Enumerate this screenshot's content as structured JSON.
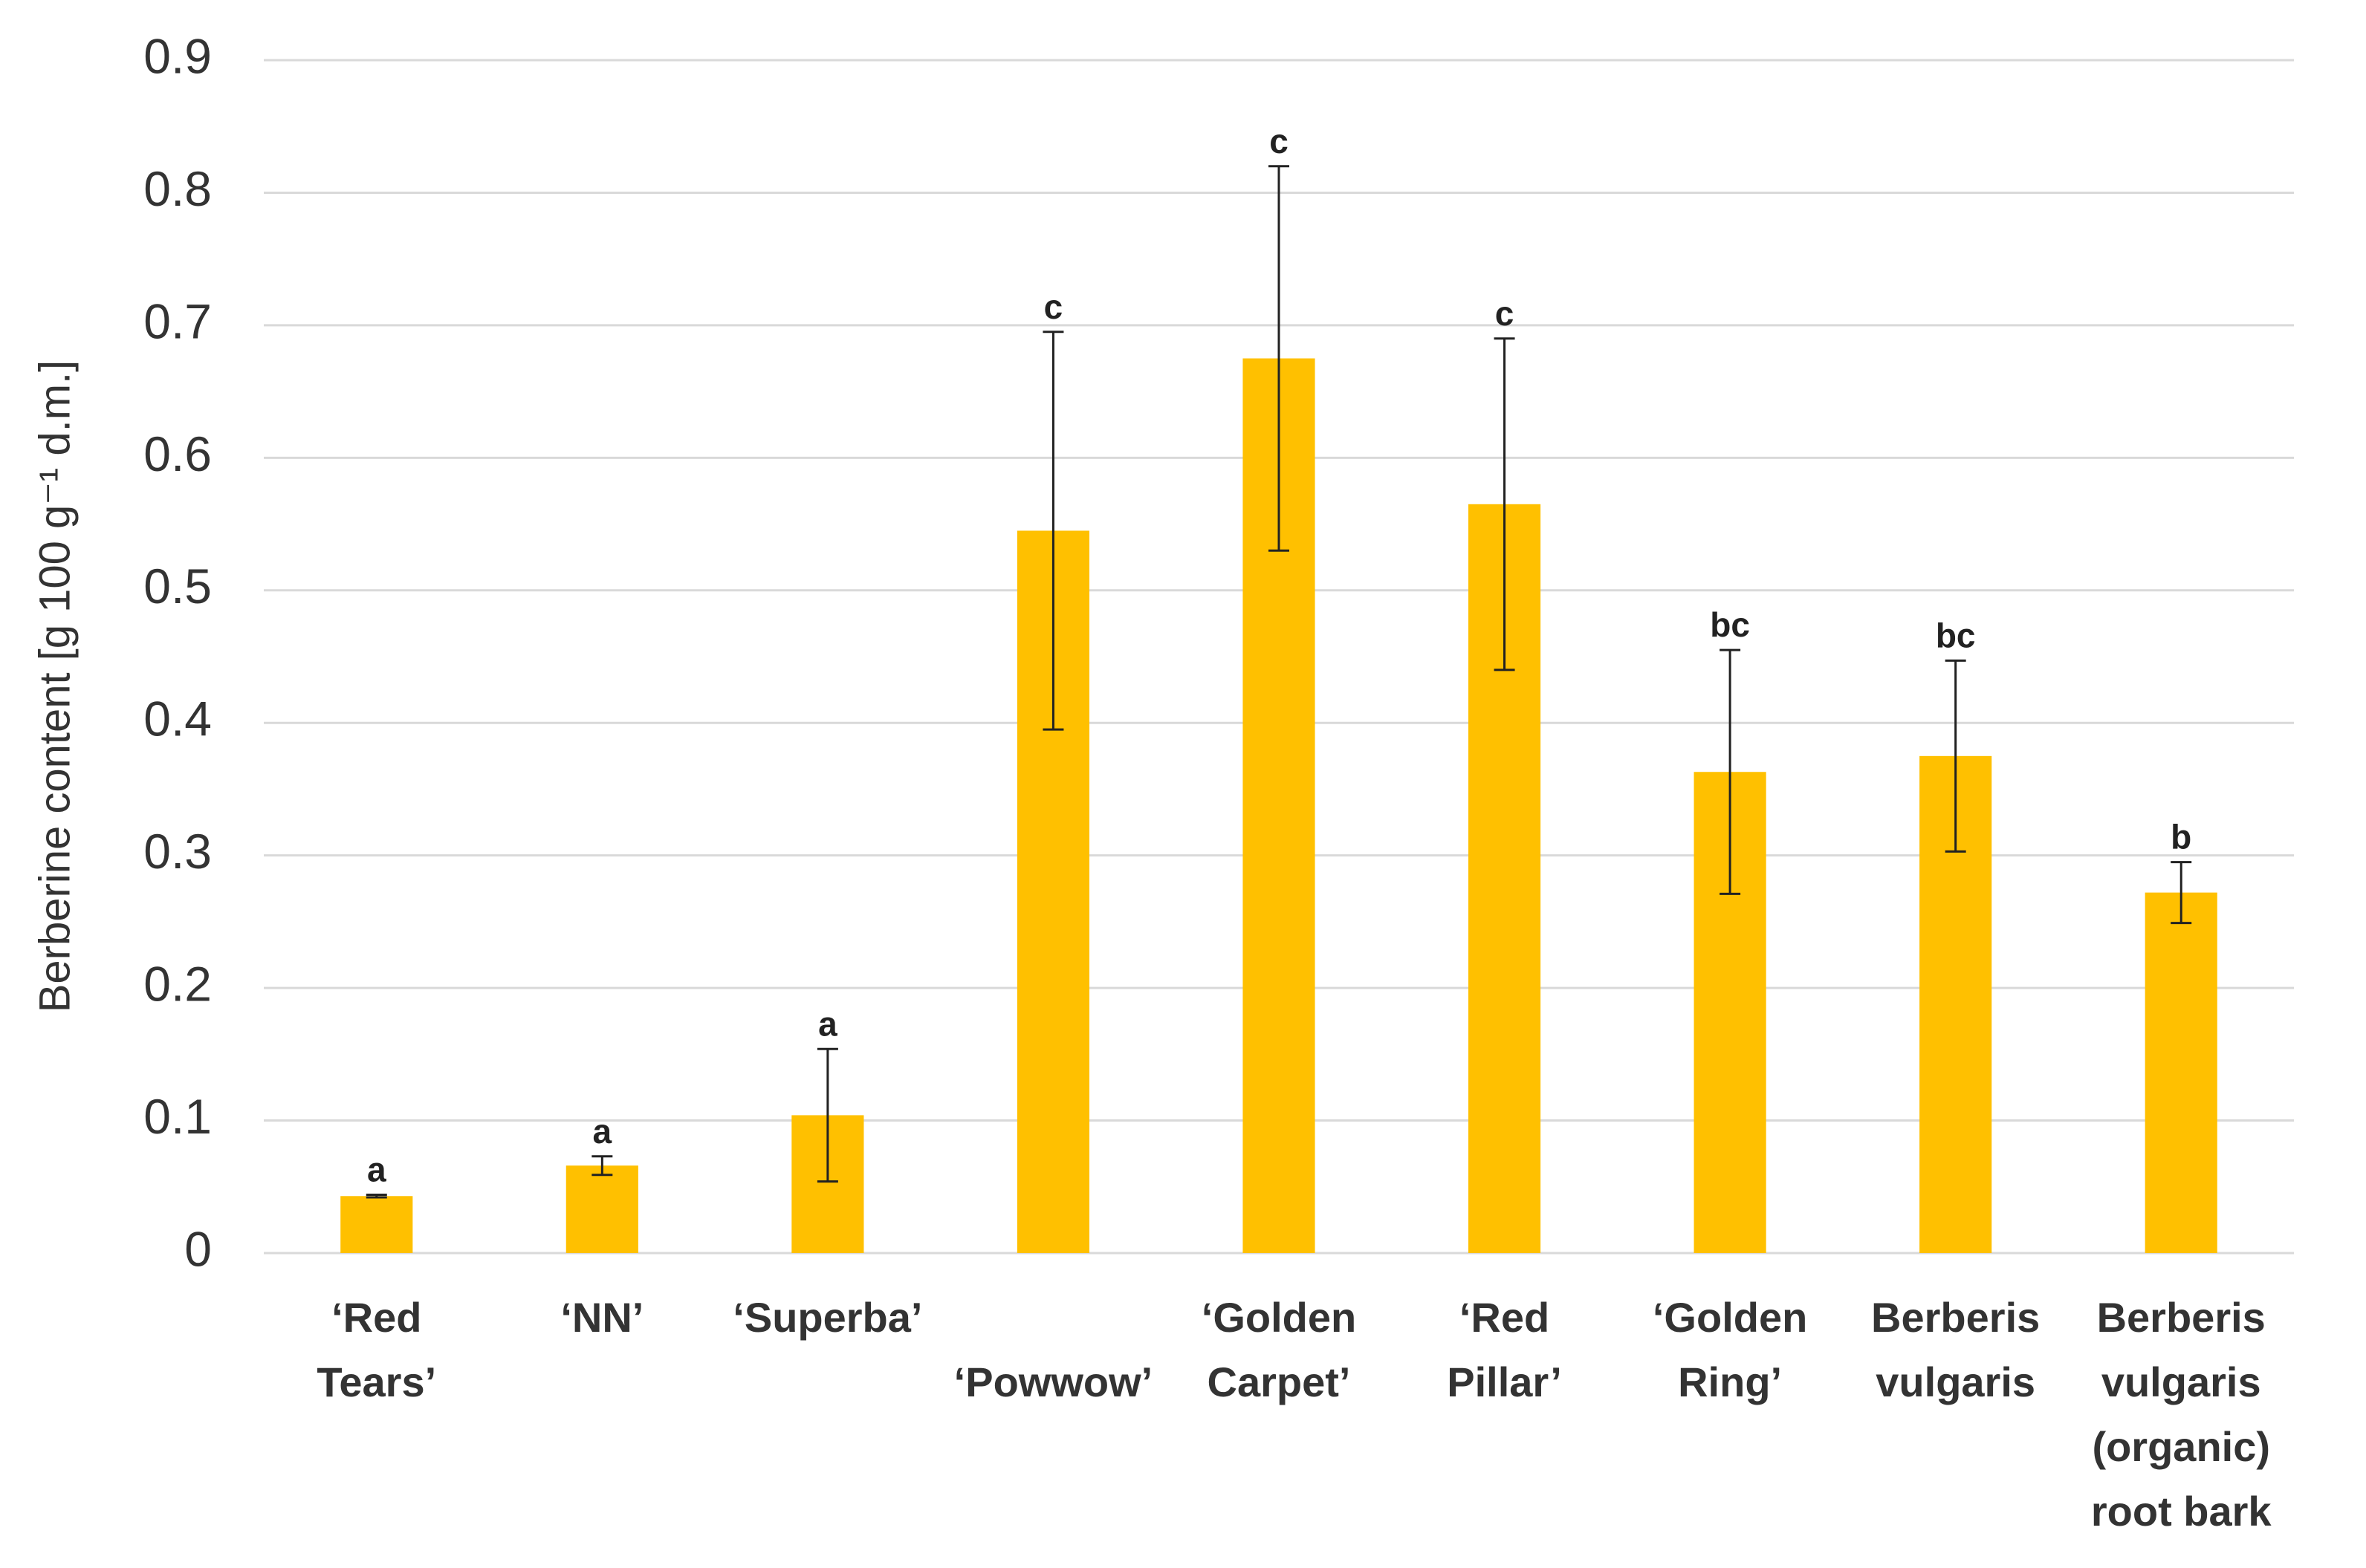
{
  "chart_data": {
    "type": "bar",
    "y_label": "Berberine content [g 100 g⁻¹ d.m.]",
    "categories": [
      [
        "‘Red",
        "Tears’"
      ],
      [
        "‘NN’"
      ],
      [
        "‘Superba’"
      ],
      [
        "‘Powwow’"
      ],
      [
        "‘Golden",
        "Carpet’"
      ],
      [
        "‘Red",
        "Pillar’"
      ],
      [
        "‘Golden",
        "Ring’"
      ],
      [
        "Berberis",
        "vulgaris"
      ],
      [
        "Berberis",
        "vulgaris",
        "(organic)",
        "root bark"
      ]
    ],
    "values": [
      0.043,
      0.066,
      0.104,
      0.545,
      0.675,
      0.565,
      0.363,
      0.375,
      0.272
    ],
    "errors": [
      0.001,
      0.007,
      0.05,
      0.15,
      0.145,
      0.125,
      0.092,
      0.072,
      0.023
    ],
    "annotations": [
      "a",
      "a",
      "a",
      "c",
      "c",
      "c",
      "bc",
      "bc",
      "b"
    ],
    "color": "#ffc000",
    "ylim": [
      0,
      0.9
    ],
    "yticks": [
      0,
      0.1,
      0.2,
      0.3,
      0.4,
      0.5,
      0.6,
      0.7,
      0.8,
      0.9
    ],
    "grid": true
  }
}
